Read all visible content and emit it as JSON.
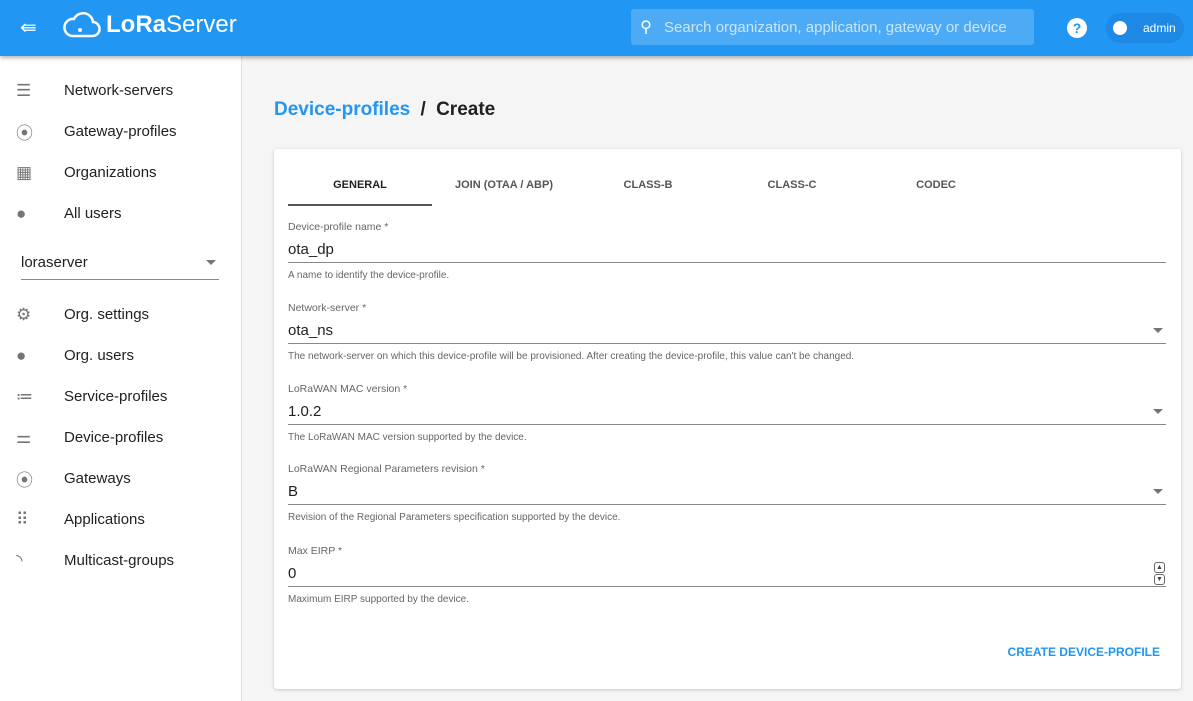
{
  "header": {
    "logo_text_bold": "LoRa",
    "logo_text": "Server",
    "search_placeholder": "Search organization, application, gateway or device",
    "user": "admin"
  },
  "sidebar": {
    "top_items": [
      {
        "label": "Network-servers",
        "icon": "server-icon"
      },
      {
        "label": "Gateway-profiles",
        "icon": "antenna-icon"
      },
      {
        "label": "Organizations",
        "icon": "building-icon"
      },
      {
        "label": "All users",
        "icon": "person-icon"
      }
    ],
    "org_selected": "loraserver",
    "org_items": [
      {
        "label": "Org. settings",
        "icon": "gear-icon"
      },
      {
        "label": "Org. users",
        "icon": "person-icon"
      },
      {
        "label": "Service-profiles",
        "icon": "service-list-icon"
      },
      {
        "label": "Device-profiles",
        "icon": "tune-icon"
      },
      {
        "label": "Gateways",
        "icon": "antenna-icon"
      },
      {
        "label": "Applications",
        "icon": "apps-icon"
      },
      {
        "label": "Multicast-groups",
        "icon": "rss-icon"
      }
    ]
  },
  "breadcrumb": {
    "parent": "Device-profiles",
    "sep": "/",
    "current": "Create"
  },
  "tabs": [
    "GENERAL",
    "JOIN (OTAA / ABP)",
    "CLASS-B",
    "CLASS-C",
    "CODEC"
  ],
  "fields": [
    {
      "label": "Device-profile name *",
      "value": "ota_dp",
      "help": "A name to identify the device-profile."
    },
    {
      "label": "Network-server *",
      "value": "ota_ns",
      "help": "The network-server on which this device-profile will be provisioned. After creating the device-profile, this value can't be changed."
    },
    {
      "label": "LoRaWAN MAC version *",
      "value": "1.0.2",
      "help": "The LoRaWAN MAC version supported by the device."
    },
    {
      "label": "LoRaWAN Regional Parameters revision *",
      "value": "B",
      "help": "Revision of the Regional Parameters specification supported by the device."
    },
    {
      "label": "Max EIRP *",
      "value": "0",
      "help": "Maximum EIRP supported by the device."
    }
  ],
  "create_label": "CREATE DEVICE-PROFILE"
}
